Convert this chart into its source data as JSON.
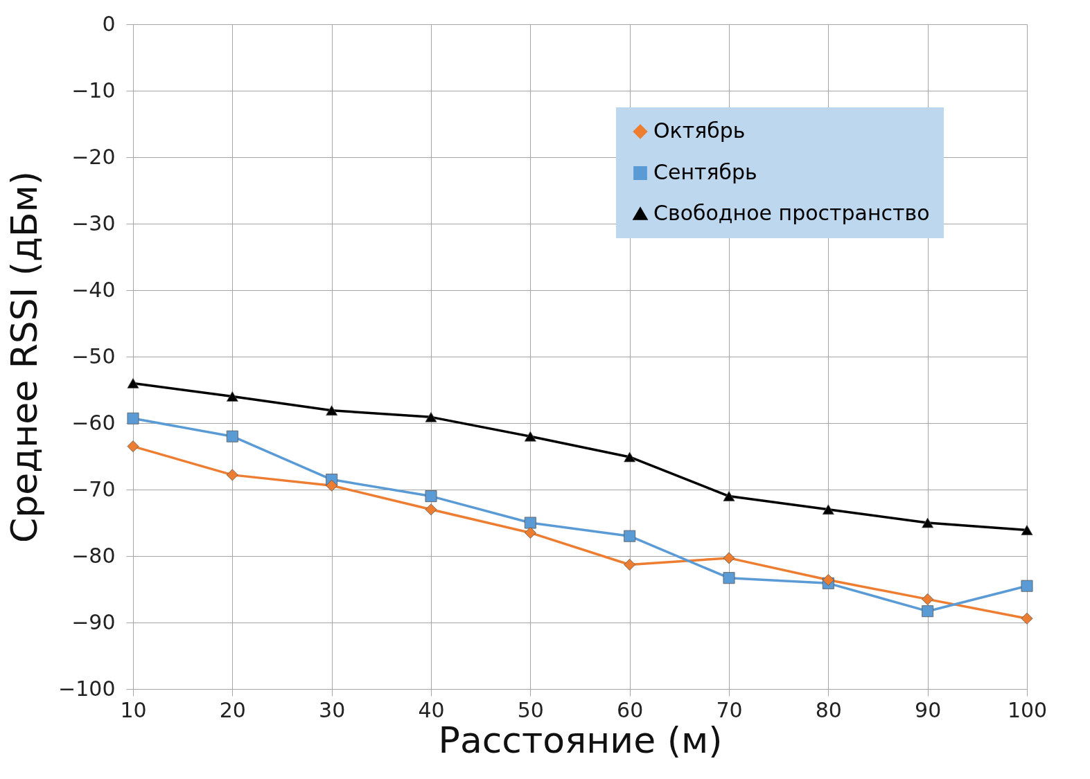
{
  "chart_data": {
    "type": "line",
    "xlabel": "Расстояние (м)",
    "ylabel": "Среднее RSSI (дБм)",
    "x": [
      10,
      20,
      30,
      40,
      50,
      60,
      70,
      80,
      90,
      100
    ],
    "xlim": [
      10,
      100
    ],
    "xticks": [
      10,
      20,
      30,
      40,
      50,
      60,
      70,
      80,
      90,
      100
    ],
    "ylim": [
      -100,
      0
    ],
    "yticks": [
      -100,
      -90,
      -80,
      -70,
      -60,
      -50,
      -40,
      -30,
      -20,
      -10,
      0
    ],
    "grid": true,
    "legend": "top right",
    "line_style": "solid",
    "series": [
      {
        "name": "Октябрь",
        "color": "#ed7d31",
        "marker": "diamond",
        "values": [
          -63.5,
          -67.8,
          -69.4,
          -73,
          -76.5,
          -81.3,
          -80.3,
          -83.6,
          -86.5,
          -89.4
        ]
      },
      {
        "name": "Сентябрь",
        "color": "#5b9bd5",
        "marker": "square",
        "values": [
          -59.3,
          -62,
          -68.5,
          -71,
          -75,
          -77,
          -83.3,
          -84.1,
          -88.3,
          -84.5
        ]
      },
      {
        "name": "Свободное пространство",
        "color": "#000000",
        "marker": "triangle",
        "values": [
          -54,
          -56,
          -58.1,
          -59.1,
          -62,
          -65.1,
          -71,
          -73,
          -75,
          -76.1
        ]
      }
    ]
  }
}
